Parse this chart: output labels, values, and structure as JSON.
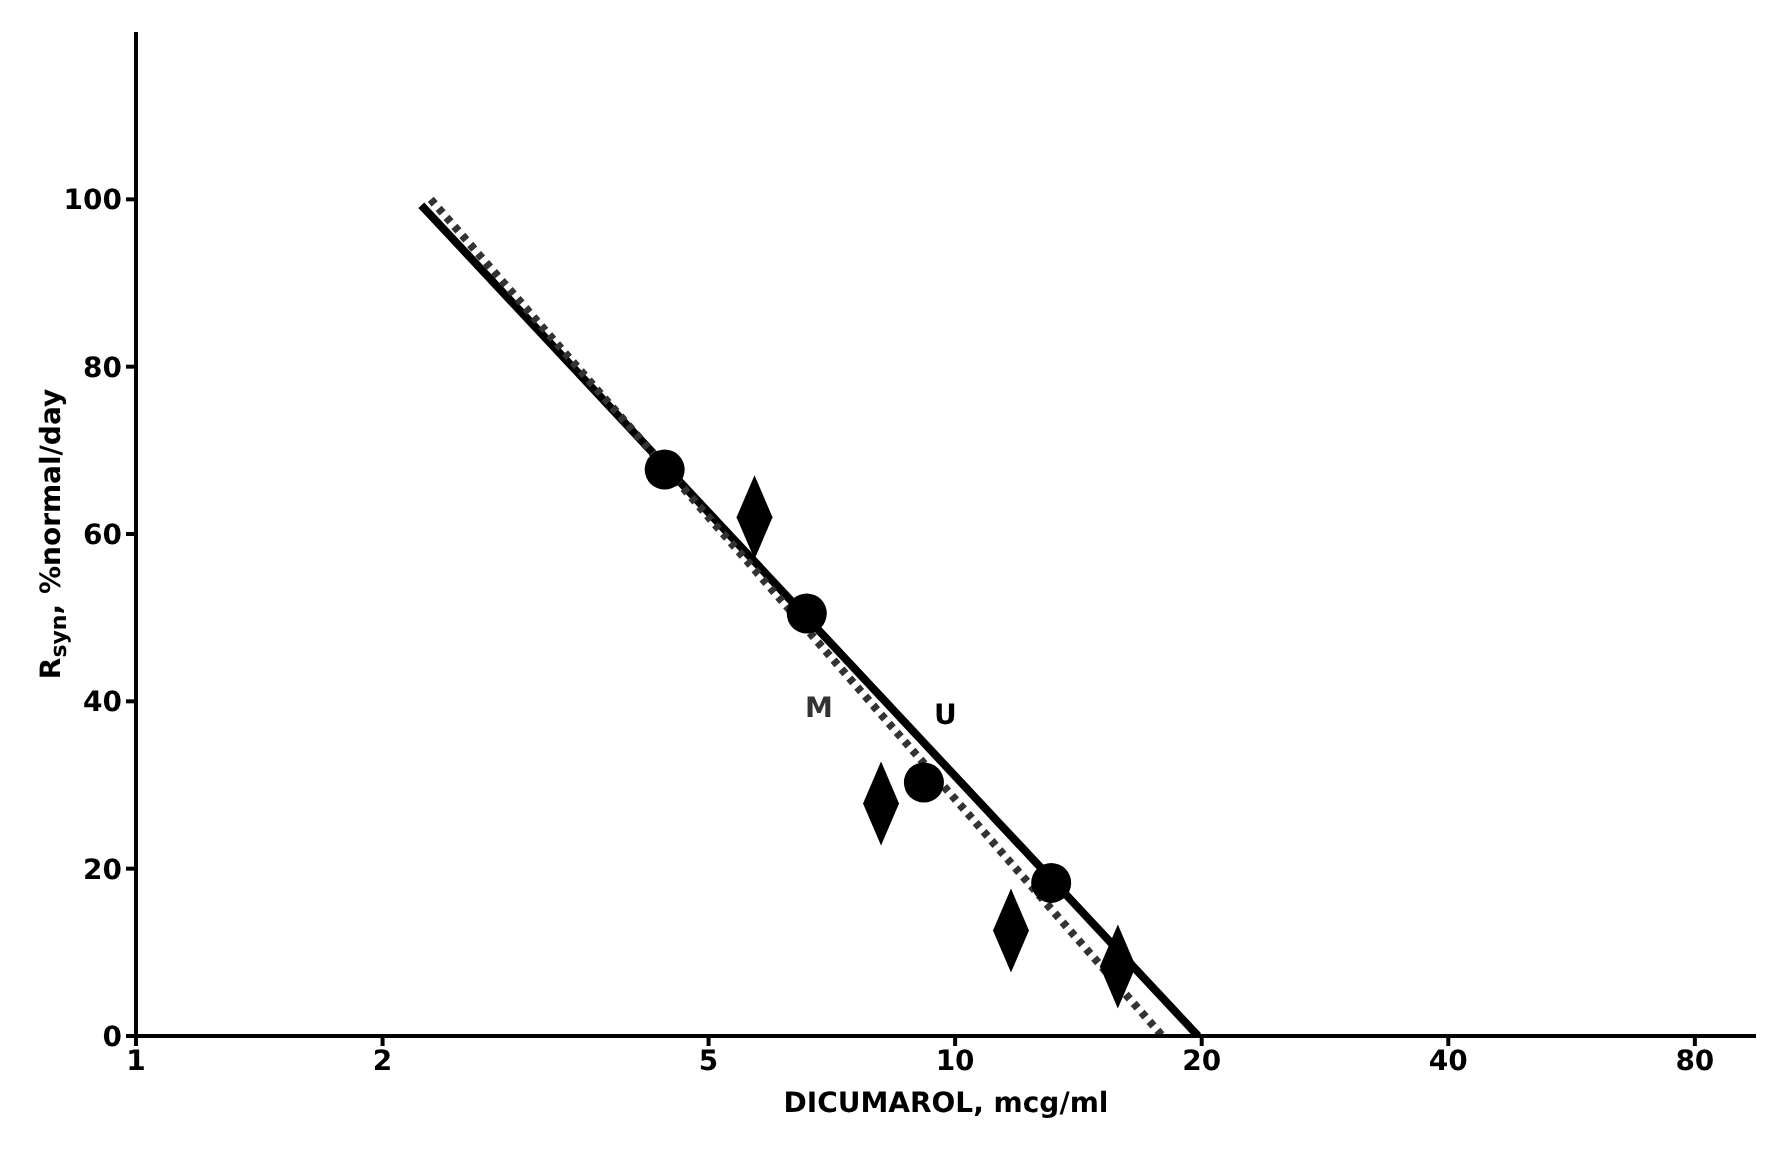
{
  "chart_data": {
    "type": "scatter",
    "xlabel": "DICUMAROL, mcg/ml",
    "ylabel": "R$_{syn}$, %normal/day",
    "log": "x",
    "xlim": [
      1,
      95
    ],
    "xticks": [
      1,
      2,
      5,
      10,
      20,
      40,
      80
    ],
    "ylim": [
      0,
      120
    ],
    "yticks": [
      0,
      20,
      40,
      60,
      80,
      100
    ],
    "series": [
      {
        "type": "line",
        "name": "U",
        "color": "#000000",
        "line_style": "solid",
        "marker": "none",
        "x": [
          2.23,
          19.8
        ],
        "values": [
          99.3,
          0
        ]
      },
      {
        "type": "line",
        "name": "M",
        "color": "#333333",
        "line_style": "dotted",
        "marker": "none",
        "x": [
          2.29,
          17.9
        ],
        "values": [
          100,
          0
        ]
      },
      {
        "color": "#000000",
        "marker": "circle",
        "x": [
          4.42,
          6.59,
          9.16,
          13.1
        ],
        "values": [
          67.7,
          50.5,
          30.3,
          18.3
        ]
      },
      {
        "color": "#000000",
        "marker": "diamond",
        "x": [
          5.69,
          8.12,
          11.7,
          15.8
        ],
        "values": [
          62,
          27.8,
          12.6,
          8.3
        ]
      }
    ]
  }
}
